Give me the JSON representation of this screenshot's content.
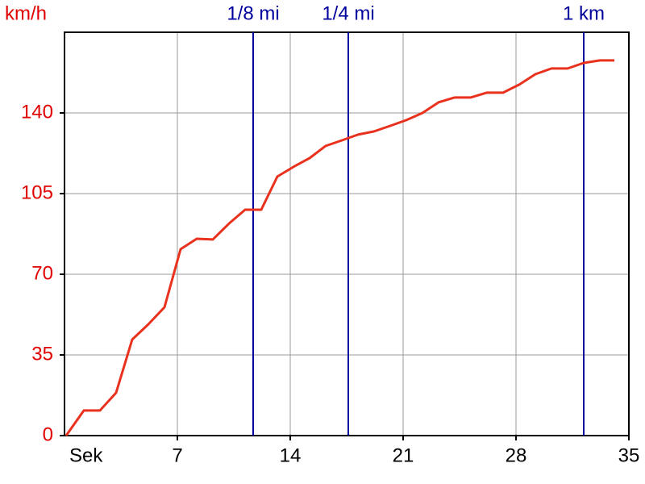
{
  "chart_data": {
    "type": "line",
    "x_label": "Sek",
    "y_label": "km/h",
    "x": [
      0.1,
      1.2,
      2.2,
      3.2,
      4.2,
      5.2,
      6.2,
      7.2,
      8.2,
      9.2,
      10.2,
      11.2,
      12.2,
      13.2,
      14.2,
      15.2,
      16.2,
      17.2,
      18.2,
      19.2,
      20.2,
      21.2,
      22.2,
      23.2,
      24.2,
      25.2,
      26.2,
      27.2,
      28.2,
      29.2,
      30.2,
      31.2,
      32.2,
      33.2,
      34.1
    ],
    "series": [
      {
        "color": "#e8321e",
        "values": [
          0,
          10.9,
          10.9,
          18.6,
          41.7,
          48.3,
          55.7,
          80.9,
          85.4,
          85.1,
          92,
          98,
          98,
          112.4,
          116.6,
          120.4,
          125.7,
          128.1,
          130.6,
          132,
          134.4,
          136.9,
          140,
          144.6,
          146.7,
          146.7,
          148.8,
          148.8,
          152.3,
          156.8,
          159.3,
          159.3,
          161.7,
          162.8,
          162.8
        ]
      }
    ],
    "xlim": [
      0,
      35
    ],
    "xticks": [
      7,
      14,
      21,
      28,
      35
    ],
    "ylim": [
      0,
      175
    ],
    "yticks": [
      0,
      35,
      70,
      105,
      140
    ],
    "grid": true,
    "axis_label_color": "#e00000",
    "marker_color": "#00009c",
    "markers": [
      {
        "label": "1/8 mi",
        "x": 11.7
      },
      {
        "label": "1/4 mi",
        "x": 17.6
      },
      {
        "label": "1 km",
        "x": 32.2
      }
    ]
  }
}
